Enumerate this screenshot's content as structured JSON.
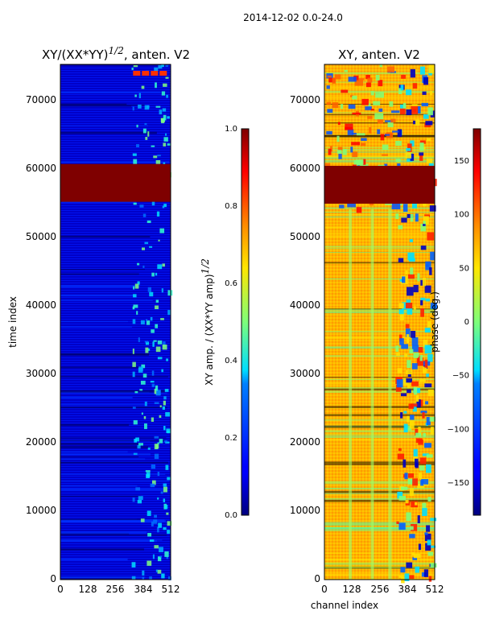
{
  "suptitle": "2014-12-02 0.0-24.0",
  "chart_data": [
    {
      "type": "heatmap",
      "title_main": "XY/(XX*YY)",
      "title_exp": "1/2",
      "title_tail": ", anten. V2",
      "ylabel": "time index",
      "xlabel": "",
      "x_ticks": [
        "0",
        "128",
        "256",
        "384",
        "512"
      ],
      "y_ticks": [
        "0",
        "10000",
        "20000",
        "30000",
        "40000",
        "50000",
        "60000",
        "70000"
      ],
      "xlim": [
        0,
        512
      ],
      "ylim": [
        0,
        75000
      ],
      "colormap": "jet",
      "flagged_time_range": [
        55000,
        60500
      ],
      "colorbar": {
        "label_main": "XY amp. / (XX*YY amp)",
        "label_exp": "1/2",
        "range": [
          0.0,
          1.0
        ],
        "ticks": [
          "0.0",
          "0.2",
          "0.4",
          "0.6",
          "0.8",
          "1.0"
        ]
      }
    },
    {
      "type": "heatmap",
      "title": "XY, anten. V2",
      "xlabel": "channel index",
      "ylabel": "",
      "x_ticks": [
        "0",
        "128",
        "256",
        "384",
        "512"
      ],
      "y_ticks": [
        "0",
        "10000",
        "20000",
        "30000",
        "40000",
        "50000",
        "60000",
        "70000"
      ],
      "xlim": [
        0,
        512
      ],
      "ylim": [
        0,
        75000
      ],
      "colormap": "jet",
      "flagged_time_range": [
        55000,
        60500
      ],
      "colorbar": {
        "label": "phase (deg.)",
        "range": [
          -180,
          180
        ],
        "ticks": [
          "150",
          "100",
          "50",
          "0",
          "−50",
          "−100",
          "−150"
        ],
        "tick_values": [
          150,
          100,
          50,
          0,
          -50,
          -100,
          -150
        ]
      }
    }
  ]
}
